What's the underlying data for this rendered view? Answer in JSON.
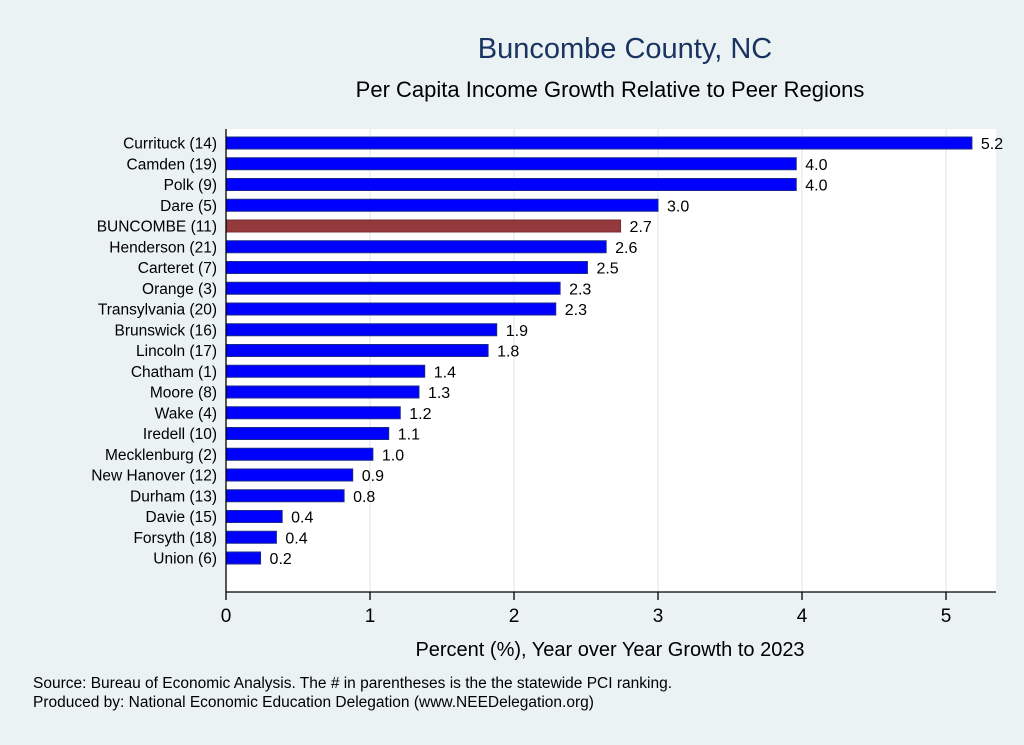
{
  "chart_data": {
    "type": "bar",
    "orientation": "horizontal",
    "title": "Buncombe County, NC",
    "subtitle": "Per Capita Income Growth Relative to Peer Regions",
    "xlabel": "Percent (%), Year over Year Growth to 2023",
    "ylabel": "",
    "xlim": [
      0,
      5.35
    ],
    "xticks": [
      0,
      1,
      2,
      3,
      4,
      5
    ],
    "grid": true,
    "highlight_color": "#943a3d",
    "bar_color": "#0000ff",
    "categories": [
      "Currituck (14)",
      "Camden (19)",
      "Polk  (9)",
      "Dare  (5)",
      "BUNCOMBE (11)",
      "Henderson (21)",
      "Carteret  (7)",
      "Orange  (3)",
      "Transylvania (20)",
      "Brunswick (16)",
      "Lincoln (17)",
      "Chatham  (1)",
      "Moore  (8)",
      "Wake  (4)",
      "Iredell (10)",
      "Mecklenburg  (2)",
      "New Hanover (12)",
      "Durham (13)",
      "Davie (15)",
      "Forsyth (18)",
      "Union  (6)"
    ],
    "values": [
      5.18,
      3.96,
      3.96,
      3.0,
      2.74,
      2.64,
      2.51,
      2.32,
      2.29,
      1.88,
      1.82,
      1.38,
      1.34,
      1.21,
      1.13,
      1.02,
      0.88,
      0.82,
      0.39,
      0.35,
      0.24
    ],
    "value_labels": [
      "5.2",
      "4.0",
      "4.0",
      "3.0",
      "2.7",
      "2.6",
      "2.5",
      "2.3",
      "2.3",
      "1.9",
      "1.8",
      "1.4",
      "1.3",
      "1.2",
      "1.1",
      "1.0",
      "0.9",
      "0.8",
      "0.4",
      "0.4",
      "0.2"
    ],
    "highlight_index": 4,
    "notes": [
      "Source: Bureau of Economic Analysis. The # in parentheses is the the statewide PCI ranking.",
      "Produced by: National Economic Education Delegation (www.NEEDelegation.org)"
    ]
  }
}
